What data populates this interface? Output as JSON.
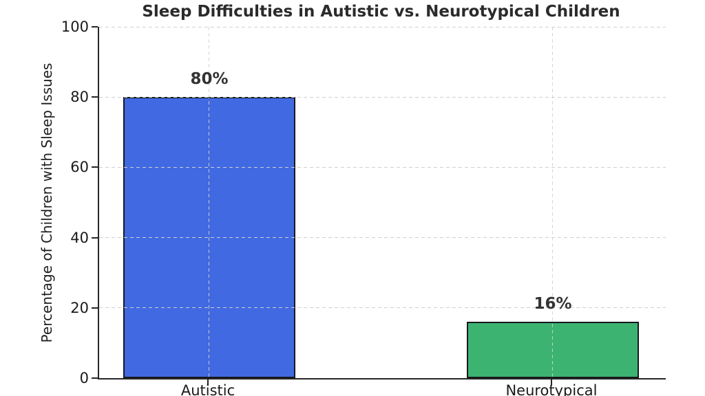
{
  "chart_data": {
    "type": "bar",
    "title": "Sleep Difficulties in Autistic vs. Neurotypical Children",
    "categories": [
      "Autistic",
      "Neurotypical"
    ],
    "values": [
      80,
      16
    ],
    "data_labels": [
      "80%",
      "16%"
    ],
    "bar_colors": [
      "#4169E1",
      "#3CB371"
    ],
    "bar_edge_color": "#16191d",
    "xlabel": "",
    "ylabel": "Percentage of Children with Sleep Issues",
    "ylim": [
      0,
      100
    ],
    "yticks": [
      0,
      20,
      40,
      60,
      80,
      100
    ],
    "grid": {
      "visible": true,
      "style": "dashed",
      "color": "#cfcfcf",
      "axes": "both",
      "above_bars": true
    },
    "legend": "none",
    "background_color": "#ffffff",
    "spine_color": "#262626",
    "title_color": "#2b2b2b",
    "tick_label_color": "#1a1a1a"
  }
}
